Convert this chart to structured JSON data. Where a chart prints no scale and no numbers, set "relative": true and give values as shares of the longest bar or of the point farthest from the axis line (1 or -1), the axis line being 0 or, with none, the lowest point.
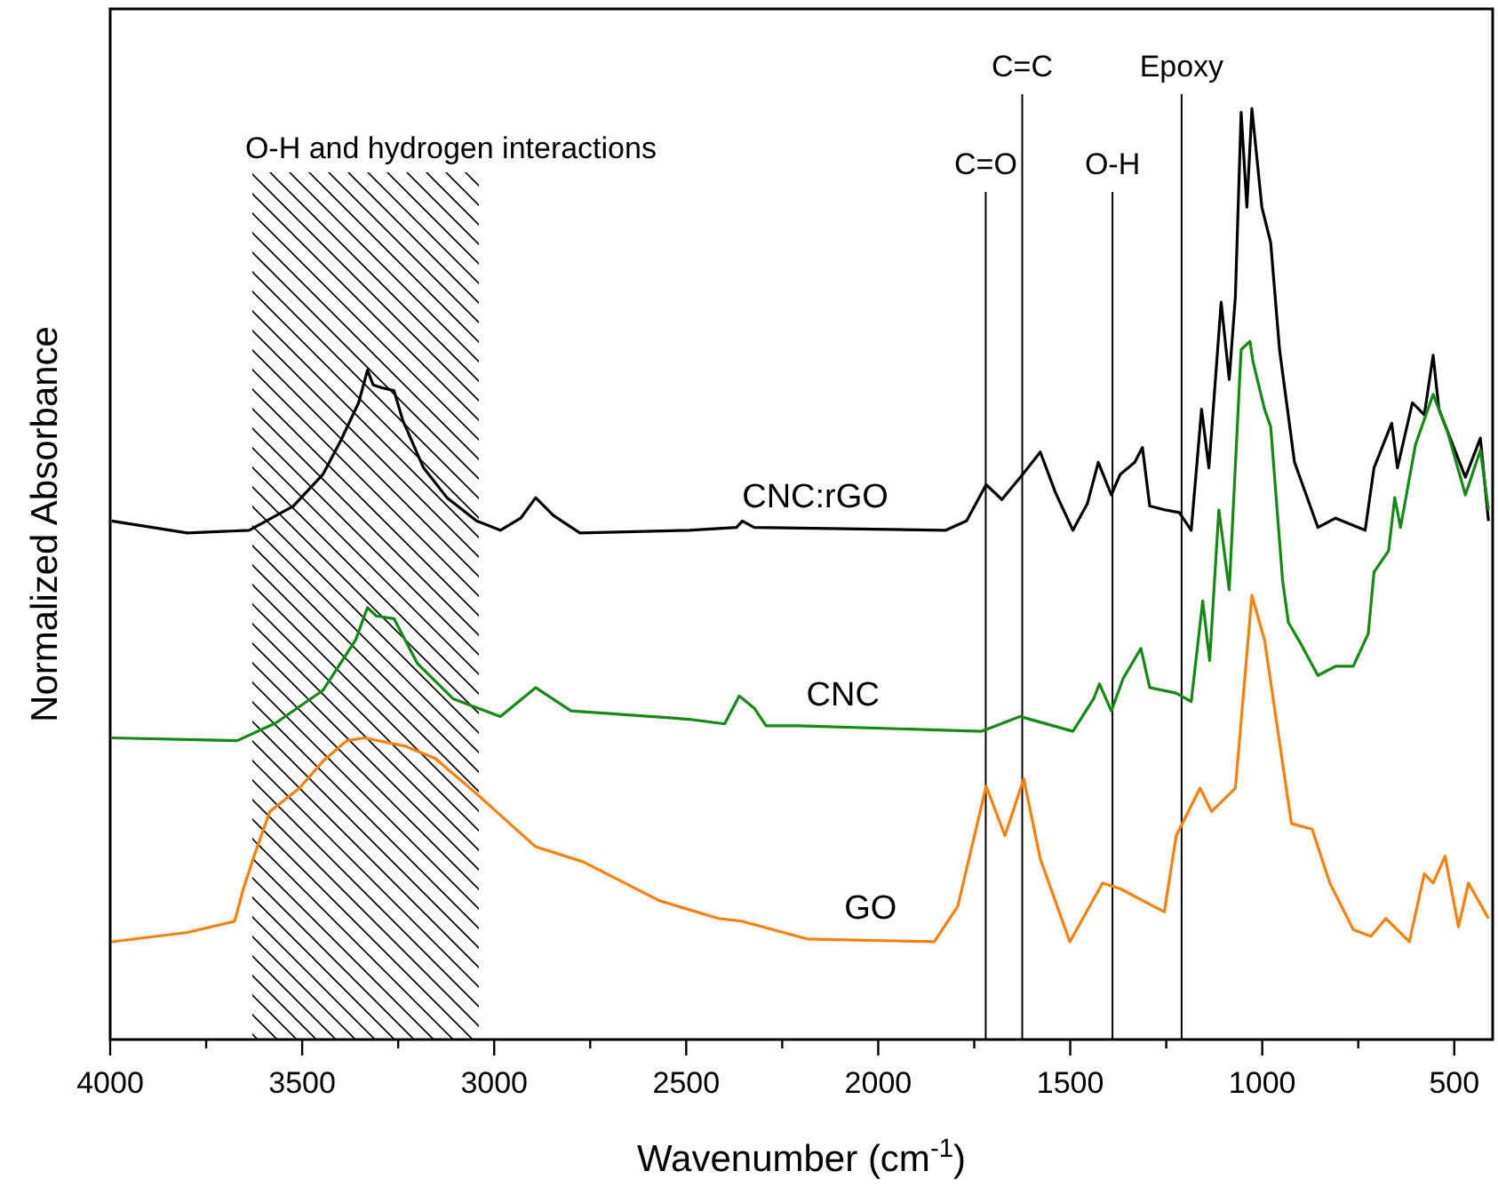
{
  "chart_data": {
    "type": "line",
    "relative": true,
    "xlabel": "Wavenumber (cm$^{-1}$)",
    "ylabel": "Normalized Absorbance",
    "xlim": [
      4000,
      400
    ],
    "xticks": [
      4000,
      {
        "value": 3750,
        "label": null
      },
      3500,
      {
        "value": 3250,
        "label": null
      },
      3000,
      {
        "value": 2750,
        "label": null
      },
      2500,
      {
        "value": 2250,
        "label": null
      },
      2000,
      {
        "value": 1750,
        "label": null
      },
      1500,
      {
        "value": 1250,
        "label": null
      },
      1000,
      {
        "value": 750,
        "label": null
      },
      500
    ],
    "series": [
      {
        "name": "CNC:rGO",
        "color": "#000000",
        "x": [
          3996,
          3799,
          3638,
          3523,
          3446,
          3400,
          3353,
          3330,
          3315,
          3292,
          3261,
          3238,
          3184,
          3123,
          3046,
          2984,
          2931,
          2892,
          2846,
          2777,
          2493,
          2369,
          2354,
          2323,
          1824,
          1770,
          1719,
          1678,
          1624,
          1578,
          1539,
          1493,
          1455,
          1427,
          1393,
          1370,
          1332,
          1312,
          1293,
          1255,
          1216,
          1185,
          1158,
          1139,
          1107,
          1086,
          1070,
          1055,
          1040,
          1027,
          1001,
          978,
          955,
          916,
          855,
          809,
          732,
          709,
          663,
          648,
          609,
          578,
          555,
          540,
          471,
          432,
          411
        ],
        "values": [
          0.557,
          0.544,
          0.547,
          0.573,
          0.607,
          0.643,
          0.684,
          0.719,
          0.703,
          0.7,
          0.697,
          0.665,
          0.614,
          0.582,
          0.557,
          0.547,
          0.56,
          0.582,
          0.563,
          0.544,
          0.547,
          0.55,
          0.557,
          0.55,
          0.547,
          0.557,
          0.596,
          0.58,
          0.607,
          0.631,
          0.588,
          0.547,
          0.576,
          0.62,
          0.585,
          0.607,
          0.62,
          0.636,
          0.573,
          0.569,
          0.566,
          0.547,
          0.677,
          0.614,
          0.792,
          0.709,
          0.798,
          0.996,
          0.894,
          1.0,
          0.894,
          0.856,
          0.741,
          0.62,
          0.55,
          0.56,
          0.547,
          0.614,
          0.662,
          0.614,
          0.684,
          0.671,
          0.735,
          0.677,
          0.604,
          0.646,
          0.557
        ]
      },
      {
        "name": "CNC",
        "color": "#138a13",
        "x": [
          3996,
          3669,
          3569,
          3446,
          3361,
          3330,
          3307,
          3261,
          3200,
          3107,
          2984,
          2892,
          2800,
          2493,
          2400,
          2362,
          2323,
          2292,
          2208,
          1732,
          1631,
          1493,
          1439,
          1424,
          1393,
          1362,
          1316,
          1293,
          1224,
          1185,
          1155,
          1137,
          1113,
          1086,
          1055,
          1032,
          1024,
          994,
          978,
          947,
          932,
          901,
          855,
          809,
          763,
          724,
          709,
          671,
          655,
          640,
          601,
          555,
          517,
          471,
          432,
          411
        ],
        "values": [
          0.324,
          0.321,
          0.34,
          0.375,
          0.429,
          0.464,
          0.455,
          0.452,
          0.404,
          0.366,
          0.347,
          0.378,
          0.353,
          0.344,
          0.339,
          0.369,
          0.356,
          0.337,
          0.337,
          0.331,
          0.347,
          0.331,
          0.366,
          0.382,
          0.353,
          0.388,
          0.42,
          0.378,
          0.372,
          0.363,
          0.471,
          0.407,
          0.569,
          0.483,
          0.741,
          0.75,
          0.728,
          0.677,
          0.658,
          0.493,
          0.448,
          0.426,
          0.391,
          0.401,
          0.401,
          0.436,
          0.502,
          0.525,
          0.582,
          0.55,
          0.639,
          0.693,
          0.652,
          0.585,
          0.633,
          0.569
        ]
      },
      {
        "name": "GO",
        "color": "#ff8000",
        "x": [
          3996,
          3799,
          3676,
          3653,
          3623,
          3584,
          3507,
          3446,
          3384,
          3338,
          3231,
          3154,
          3046,
          2892,
          2769,
          2569,
          2416,
          2354,
          2185,
          1854,
          1793,
          1719,
          1670,
          1621,
          1578,
          1501,
          1416,
          1370,
          1255,
          1224,
          1162,
          1132,
          1070,
          1027,
          994,
          924,
          870,
          824,
          763,
          717,
          678,
          617,
          578,
          555,
          524,
          489,
          463,
          411
        ],
        "values": [
          0.105,
          0.115,
          0.127,
          0.162,
          0.2,
          0.245,
          0.27,
          0.299,
          0.321,
          0.324,
          0.315,
          0.302,
          0.264,
          0.207,
          0.191,
          0.149,
          0.13,
          0.127,
          0.108,
          0.105,
          0.143,
          0.272,
          0.219,
          0.28,
          0.194,
          0.105,
          0.168,
          0.162,
          0.137,
          0.219,
          0.27,
          0.245,
          0.27,
          0.477,
          0.429,
          0.232,
          0.226,
          0.168,
          0.118,
          0.111,
          0.13,
          0.105,
          0.178,
          0.168,
          0.197,
          0.121,
          0.168,
          0.13
        ]
      }
    ],
    "ref_lines": [
      {
        "axis": "x",
        "value": 1720,
        "label": "C=O",
        "color": "#000000"
      },
      {
        "axis": "x",
        "value": 1625,
        "label": "C=C",
        "color": "#000000"
      },
      {
        "axis": "x",
        "value": 1390,
        "label": "O-H",
        "color": "#000000"
      },
      {
        "axis": "x",
        "value": 1210,
        "label": "Epoxy",
        "color": "#000000"
      }
    ],
    "bands": [
      {
        "axis": "x",
        "from": 3630,
        "to": 3040,
        "label": "O-H and hydrogen interactions",
        "color": "#000000"
      }
    ]
  }
}
